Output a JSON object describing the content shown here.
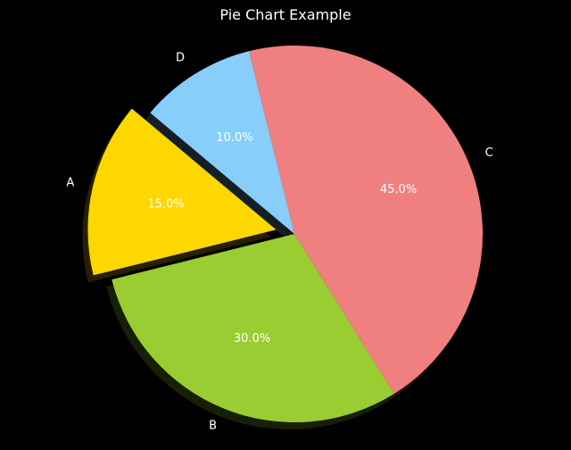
{
  "chart_data": {
    "type": "pie",
    "title": "Pie Chart Example",
    "labels": [
      "A",
      "B",
      "C",
      "D"
    ],
    "values": [
      15,
      30,
      45,
      10
    ],
    "percent_labels": [
      "15.0%",
      "30.0%",
      "45.0%",
      "10.0%"
    ],
    "colors": [
      "#ffd700",
      "#9acd32",
      "#f08080",
      "#87cefa"
    ],
    "explode": [
      0.1,
      0,
      0,
      0
    ],
    "start_angle_deg": 140,
    "shadow": true,
    "background": "#000000",
    "text_color": "#ffffff"
  }
}
